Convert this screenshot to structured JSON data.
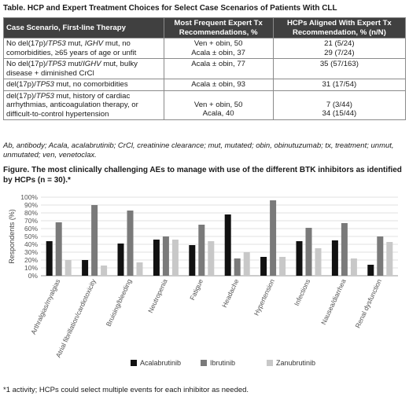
{
  "table_title": "Table. HCP and Expert Treatment Choices for Select Case Scenarios of Patients With CLL",
  "table": {
    "headers": [
      "Case Scenario, First-line Therapy",
      "Most Frequent Expert Tx Recommendations, %",
      "HCPs Aligned With Expert Tx Recommendation, % (n/N)"
    ],
    "rows": [
      {
        "scenario_html": "No del(17p)/<i>TP53</i> mut, <i>IGHV</i> mut, no comorbidities, ≥65 years of age or unfit",
        "rec": [
          "Ven + obin, 50",
          "Acala ± obin, 37"
        ],
        "hcp": [
          "21 (5/24)",
          "29 (7/24)"
        ]
      },
      {
        "scenario_html": "No del(17p)/<i>TP53</i> mut/<i>IGHV</i> mut, bulky disease + diminished CrCl",
        "rec": [
          "Acala ± obin, 77"
        ],
        "hcp": [
          "35 (57/163)"
        ]
      },
      {
        "scenario_html": "del(17p)/<i>TP53</i> mut, no comorbidities",
        "rec": [
          "Acala ± obin, 93"
        ],
        "hcp": [
          "31 (17/54)"
        ]
      },
      {
        "scenario_html": "del(17p)/<i>TP53</i> mut, history of cardiac arrhythmias, anticoagulation therapy, or difficult-to-control hypertension",
        "rec": [
          "Ven + obin, 50",
          "Acala, 40"
        ],
        "hcp": [
          "7 (3/44)",
          "34 (15/44)"
        ]
      }
    ]
  },
  "abbreviations": "Ab, antibody; Acala, acalabrutinib; CrCl, creatinine clearance; mut, mutated; obin, obinutuzumab; tx, treatment; unmut, unmutated; ven, venetoclax.",
  "figure_title": "Figure. The most clinically challenging AEs to manage with use of the different BTK inhibitors as identified by HCPs (n = 30).*",
  "footnote": "*1 activity; HCPs could select multiple events for each inhibitor as needed.",
  "chart_data": {
    "type": "bar",
    "ylabel": "Respondents (%)",
    "ylim": [
      0,
      100
    ],
    "yticks": [
      "0%",
      "10%",
      "20%",
      "30%",
      "40%",
      "50%",
      "60%",
      "70%",
      "80%",
      "90%",
      "100%"
    ],
    "grid": true,
    "legend_position": "bottom",
    "categories": [
      "Arthralgias/myalgias",
      "Atrial fibrillation/cardiotoxicity",
      "Bruising/bleeding",
      "Neutropenia",
      "Fatigue",
      "Headache",
      "Hypertension",
      "Infections",
      "Nausea/diarrhea",
      "Renal dysfunction"
    ],
    "series": [
      {
        "name": "Acalabrutinib",
        "color": "#111111",
        "values": [
          44,
          20,
          41,
          46,
          39,
          78,
          24,
          44,
          45,
          14
        ]
      },
      {
        "name": "Ibrutinib",
        "color": "#7a7a7a",
        "values": [
          68,
          90,
          83,
          50,
          65,
          22,
          96,
          61,
          67,
          50
        ]
      },
      {
        "name": "Zanubrutinib",
        "color": "#c8c8c8",
        "values": [
          20,
          13,
          17,
          46,
          44,
          30,
          24,
          35,
          22,
          43
        ]
      }
    ]
  }
}
